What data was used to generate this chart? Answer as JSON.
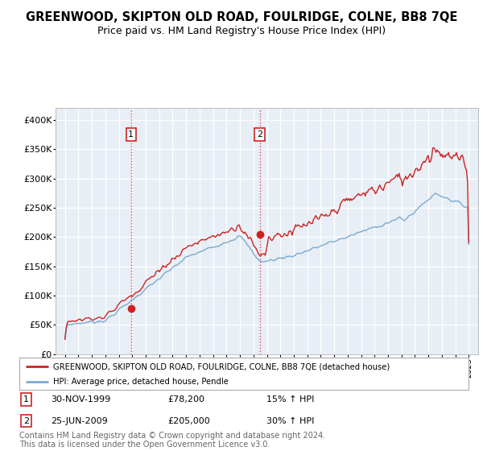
{
  "title": "GREENWOOD, SKIPTON OLD ROAD, FOULRIDGE, COLNE, BB8 7QE",
  "subtitle": "Price paid vs. HM Land Registry's House Price Index (HPI)",
  "title_fontsize": 10.5,
  "subtitle_fontsize": 9,
  "background_color": "#ffffff",
  "plot_bg_color": "#e8eef5",
  "grid_color": "#ffffff",
  "ylim": [
    0,
    420000
  ],
  "yticks": [
    0,
    50000,
    100000,
    150000,
    200000,
    250000,
    300000,
    350000,
    400000
  ],
  "ytick_labels": [
    "£0",
    "£50K",
    "£100K",
    "£150K",
    "£200K",
    "£250K",
    "£300K",
    "£350K",
    "£400K"
  ],
  "sale1_date_num": 1999.91,
  "sale1_price": 78200,
  "sale2_date_num": 2009.48,
  "sale2_price": 205000,
  "sale1_label": "1",
  "sale2_label": "2",
  "line_color_property": "#cc2222",
  "line_color_hpi": "#7aaad0",
  "legend_property": "GREENWOOD, SKIPTON OLD ROAD, FOULRIDGE, COLNE, BB8 7QE (detached house)",
  "legend_hpi": "HPI: Average price, detached house, Pendle",
  "annotation1_num": "1",
  "annotation1_date": "30-NOV-1999",
  "annotation1_price": "£78,200",
  "annotation1_hpi": "15% ↑ HPI",
  "annotation2_num": "2",
  "annotation2_date": "25-JUN-2009",
  "annotation2_price": "£205,000",
  "annotation2_hpi": "30% ↑ HPI",
  "footer": "Contains HM Land Registry data © Crown copyright and database right 2024.\nThis data is licensed under the Open Government Licence v3.0.",
  "footer_fontsize": 7
}
